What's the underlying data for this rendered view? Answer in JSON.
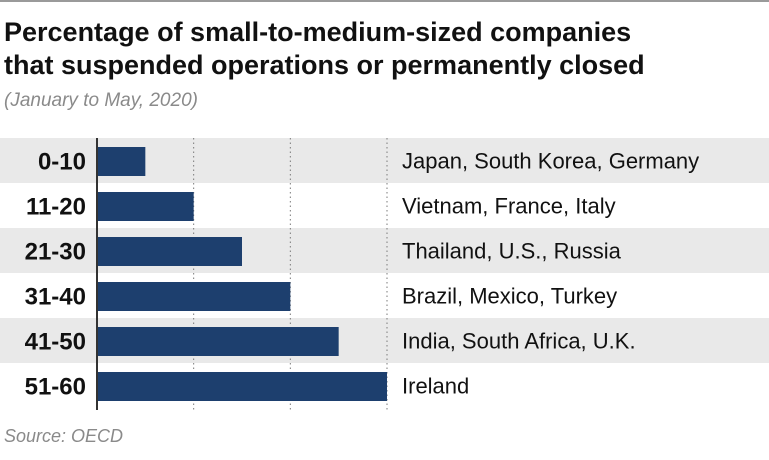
{
  "title_line1": "Percentage of small-to-medium-sized companies",
  "title_line2": "that suspended operations or permanently closed",
  "subtitle": "(January to May, 2020)",
  "source": "Source: OECD",
  "colors": {
    "bar": "#1d3f6e",
    "band": "#e9e9e9",
    "axis": "#333333",
    "grid": "#7a7a7a"
  },
  "chart_data": {
    "type": "bar",
    "orientation": "horizontal",
    "categories": [
      "0-10",
      "11-20",
      "21-30",
      "31-40",
      "41-50",
      "51-60"
    ],
    "values": [
      10,
      20,
      30,
      40,
      50,
      60
    ],
    "labels": [
      "Japan, South Korea, Germany",
      "Vietnam, France, Italy",
      "Thailand, U.S., Russia",
      "Brazil, Mexico, Turkey",
      "India, South Africa, U.K.",
      "Ireland"
    ],
    "xlim": [
      0,
      60
    ],
    "gridlines": [
      20,
      40,
      60
    ],
    "grid": true,
    "alternating_bands": true
  }
}
